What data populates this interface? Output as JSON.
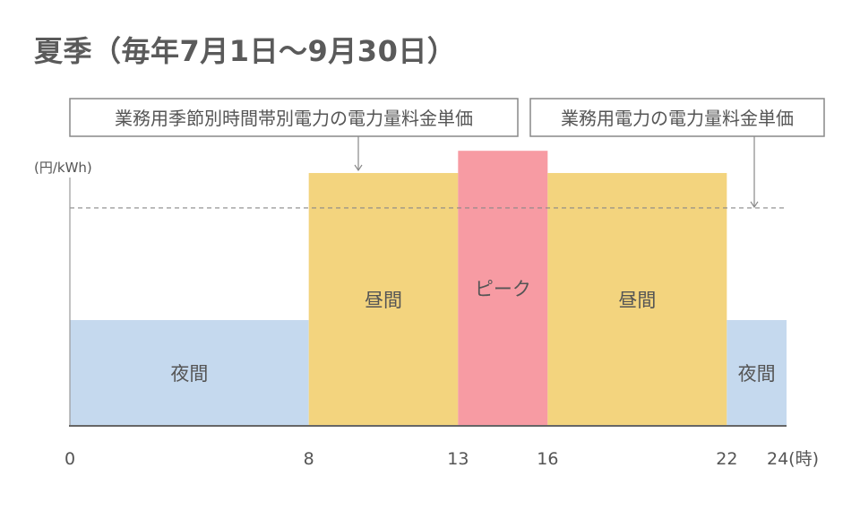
{
  "title": "夏季（毎年7月1日〜9月30日）",
  "colors": {
    "night": "#c5d9ee",
    "day": "#f3d47e",
    "peak": "#f79ba3",
    "axis": "#888888",
    "text": "#555555"
  },
  "chart_data": {
    "type": "bar",
    "unit_label": "(円/kWh)",
    "x_unit": "(時)",
    "xlim": [
      0,
      24
    ],
    "x_ticks": [
      {
        "value": 0,
        "label": "0"
      },
      {
        "value": 8,
        "label": "8"
      },
      {
        "value": 13,
        "label": "13"
      },
      {
        "value": 16,
        "label": "16"
      },
      {
        "value": 22,
        "label": "22"
      },
      {
        "value": 24,
        "label": "24"
      }
    ],
    "segments": [
      {
        "name": "夜間",
        "start": 0,
        "end": 8,
        "level": 1.0,
        "color_key": "night"
      },
      {
        "name": "昼間",
        "start": 8,
        "end": 13,
        "level": 2.39,
        "color_key": "day"
      },
      {
        "name": "ピーク",
        "start": 13,
        "end": 16,
        "level": 2.6,
        "color_key": "peak"
      },
      {
        "name": "昼間",
        "start": 16,
        "end": 22,
        "level": 2.39,
        "color_key": "day"
      },
      {
        "name": "夜間",
        "start": 22,
        "end": 24,
        "level": 1.0,
        "color_key": "night"
      }
    ],
    "reference_line": {
      "level": 2.06
    },
    "ylim": [
      0,
      3
    ],
    "annotations": [
      {
        "text": "業務用季節別時間帯別電力の電力量料金単価",
        "target": "segment-1"
      },
      {
        "text": "業務用電力の電力量料金単価",
        "target": "reference-line"
      }
    ]
  }
}
